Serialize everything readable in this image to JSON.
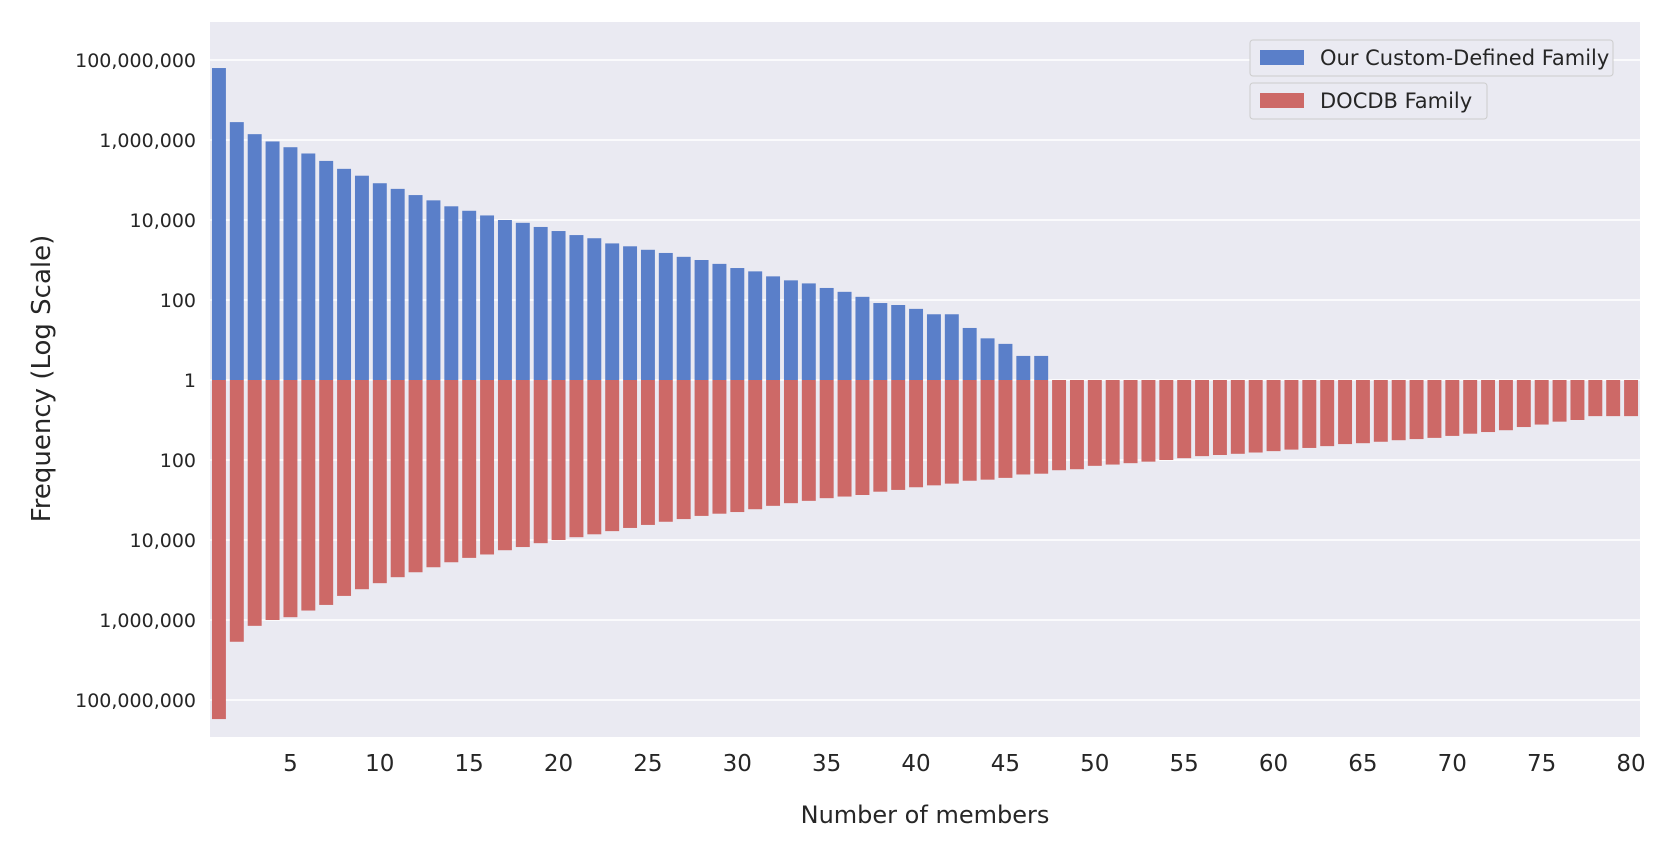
{
  "chart_data": {
    "type": "bar",
    "title": "",
    "xlabel": "Number of members",
    "ylabel": "Frequency (Log Scale)",
    "yscale": "log",
    "layout": "diverging (top series upward, bottom series downward from 1)",
    "xlim": [
      0.5,
      80.5
    ],
    "ylim_top": [
      1,
      1000000000
    ],
    "ylim_bottom": [
      1,
      1000000000
    ],
    "grid": true,
    "legend_position": "top-right",
    "x_ticks": [
      5,
      10,
      15,
      20,
      25,
      30,
      35,
      40,
      45,
      50,
      55,
      60,
      65,
      70,
      75,
      80
    ],
    "x_tick_labels": [
      "5",
      "10",
      "15",
      "20",
      "25",
      "30",
      "35",
      "40",
      "45",
      "50",
      "55",
      "60",
      "65",
      "70",
      "75",
      "80"
    ],
    "y_ticks": [
      100000000,
      1000000,
      10000,
      100,
      1,
      100,
      10000,
      1000000,
      100000000
    ],
    "y_tick_labels": [
      "100,000,000",
      "1,000,000",
      "10,000",
      "100",
      "1",
      "100",
      "10,000",
      "1,000,000",
      "100,000,000"
    ],
    "series": [
      {
        "name": "Our Custom-Defined Family",
        "color": "#5a7fc9",
        "direction": "up",
        "x": [
          1,
          2,
          3,
          4,
          5,
          6,
          7,
          8,
          9,
          10,
          11,
          12,
          13,
          14,
          15,
          16,
          17,
          18,
          19,
          20,
          21,
          22,
          23,
          24,
          25,
          26,
          27,
          28,
          29,
          30,
          31,
          32,
          33,
          34,
          35,
          36,
          37,
          38,
          39,
          40,
          41,
          42,
          43,
          44,
          45,
          46,
          47
        ],
        "values": [
          63000000,
          2800000,
          1400000,
          920000,
          660000,
          460000,
          300000,
          190000,
          128000,
          83000,
          60000,
          42000,
          31000,
          22000,
          17000,
          13000,
          10000,
          8500,
          6700,
          5300,
          4200,
          3500,
          2600,
          2200,
          1800,
          1500,
          1200,
          1000,
          800,
          630,
          520,
          390,
          310,
          260,
          200,
          160,
          120,
          84,
          75,
          60,
          44,
          44,
          20,
          11,
          8,
          4,
          4
        ]
      },
      {
        "name": "DOCDB Family",
        "color": "#cd6967",
        "direction": "down",
        "x": [
          1,
          2,
          3,
          4,
          5,
          6,
          7,
          8,
          9,
          10,
          11,
          12,
          13,
          14,
          15,
          16,
          17,
          18,
          19,
          20,
          21,
          22,
          23,
          24,
          25,
          26,
          27,
          28,
          29,
          30,
          31,
          32,
          33,
          34,
          35,
          36,
          37,
          38,
          39,
          40,
          41,
          42,
          43,
          44,
          45,
          46,
          47,
          48,
          49,
          50,
          51,
          52,
          53,
          54,
          55,
          56,
          57,
          58,
          59,
          60,
          61,
          62,
          63,
          64,
          65,
          66,
          67,
          68,
          69,
          70,
          71,
          72,
          73,
          74,
          75,
          76,
          77,
          78,
          79,
          80
        ],
        "values": [
          300000000,
          3500000,
          1400000,
          1000000,
          850000,
          580000,
          420000,
          250000,
          170000,
          120000,
          85000,
          64000,
          48000,
          36000,
          28000,
          23000,
          18000,
          15000,
          12000,
          10000,
          8500,
          7200,
          6000,
          5000,
          4200,
          3500,
          3000,
          2500,
          2200,
          2000,
          1700,
          1400,
          1200,
          1050,
          900,
          820,
          750,
          620,
          560,
          480,
          430,
          390,
          330,
          310,
          280,
          230,
          220,
          180,
          170,
          140,
          130,
          120,
          110,
          100,
          90,
          80,
          75,
          70,
          65,
          60,
          55,
          50,
          45,
          40,
          38,
          35,
          32,
          30,
          28,
          25,
          22,
          20,
          18,
          15,
          13,
          11,
          10,
          8,
          8,
          8
        ]
      }
    ]
  }
}
